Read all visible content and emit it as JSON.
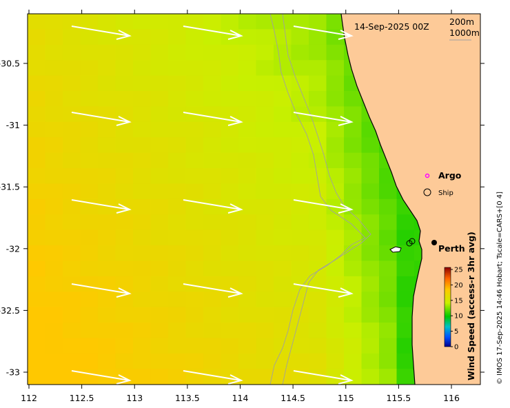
{
  "map": {
    "title": "14-Sep-2025 00Z",
    "depth_labels": [
      "200m",
      "1000m"
    ],
    "credit": "© IMOS 17-Sep-2025 14:46 Hobart; Tscale=CARS+[0 4]",
    "x_ticks": [
      {
        "value": 112,
        "label": "112"
      },
      {
        "value": 112.5,
        "label": "112.5"
      },
      {
        "value": 113,
        "label": "113"
      },
      {
        "value": 113.5,
        "label": "113.5"
      },
      {
        "value": 114,
        "label": "114"
      },
      {
        "value": 114.5,
        "label": "114.5"
      },
      {
        "value": 115,
        "label": "115"
      },
      {
        "value": 115.5,
        "label": "115.5"
      },
      {
        "value": 116,
        "label": "116"
      }
    ],
    "y_ticks": [
      {
        "value": -30.5,
        "label": "-30.5"
      },
      {
        "value": -31,
        "label": "-31"
      },
      {
        "value": -31.5,
        "label": "-31.5"
      },
      {
        "value": -32,
        "label": "-32"
      },
      {
        "value": -32.5,
        "label": "-32.5"
      },
      {
        "value": -33,
        "label": "-33"
      }
    ],
    "legend": {
      "argo": "Argo",
      "ship": "Ship"
    },
    "city": {
      "name": "Perth"
    },
    "colorbar": {
      "label": "Wind Speed (access-r 3hr avg)",
      "ticks": [
        "25",
        "20",
        "15",
        "10",
        "5",
        "0"
      ]
    },
    "colors": {
      "land": "#fdca98",
      "water_low": "#00c800",
      "water_mid": "#c8f000",
      "water_high": "#ffc800"
    }
  }
}
